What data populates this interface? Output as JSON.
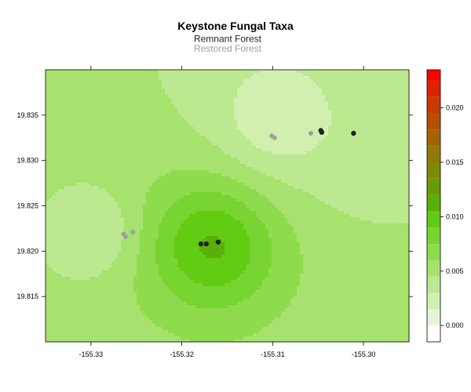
{
  "chart_data": {
    "type": "heatmap",
    "title": "Keystone Fungal Taxa",
    "xlabel": "",
    "ylabel": "",
    "xlim": [
      -155.335,
      -155.295
    ],
    "ylim": [
      19.81,
      19.84
    ],
    "x_ticks": [
      "-155.33",
      "-155.32",
      "-155.31",
      "-155.30"
    ],
    "y_ticks": [
      "19.815",
      "19.820",
      "19.825",
      "19.830",
      "19.835"
    ],
    "legend": {
      "placement": "top",
      "entries": [
        {
          "name": "Remnant Forest",
          "color": "#222222"
        },
        {
          "name": "Restored Forest",
          "color": "#9e9e9e"
        }
      ]
    },
    "colorbar": {
      "min": -0.0015,
      "max": 0.0235,
      "tick_values": [
        0.0,
        0.005,
        0.01,
        0.015,
        0.02
      ],
      "tick_labels": [
        "0.000",
        "0.005",
        "0.010",
        "0.015",
        "0.020"
      ],
      "levels": [
        {
          "lo": -0.0015,
          "hi": 0.0,
          "color": "#ffffff"
        },
        {
          "lo": 0.0,
          "hi": 0.0015,
          "color": "#e6f5d8"
        },
        {
          "lo": 0.0015,
          "hi": 0.003,
          "color": "#d1f0b0"
        },
        {
          "lo": 0.003,
          "hi": 0.0045,
          "color": "#bce98f"
        },
        {
          "lo": 0.0045,
          "hi": 0.006,
          "color": "#a6e26d"
        },
        {
          "lo": 0.006,
          "hi": 0.0075,
          "color": "#8fdb4e"
        },
        {
          "lo": 0.0075,
          "hi": 0.009,
          "color": "#78d431"
        },
        {
          "lo": 0.009,
          "hi": 0.0105,
          "color": "#61cc12"
        },
        {
          "lo": 0.0105,
          "hi": 0.012,
          "color": "#5aaf0a"
        },
        {
          "lo": 0.012,
          "hi": 0.0135,
          "color": "#6a9a05"
        },
        {
          "lo": 0.0135,
          "hi": 0.015,
          "color": "#7d8a04"
        },
        {
          "lo": 0.015,
          "hi": 0.0165,
          "color": "#907a04"
        },
        {
          "lo": 0.0165,
          "hi": 0.018,
          "color": "#a36404"
        },
        {
          "lo": 0.018,
          "hi": 0.0195,
          "color": "#b64f04"
        },
        {
          "lo": 0.0195,
          "hi": 0.021,
          "color": "#c93a03"
        },
        {
          "lo": 0.021,
          "hi": 0.0225,
          "color": "#dc2302"
        },
        {
          "lo": 0.0225,
          "hi": 0.024,
          "color": "#ff0000"
        }
      ]
    },
    "field": {
      "base_value": 0.0045,
      "kernels": [
        {
          "cx": -155.3165,
          "cy": 19.8207,
          "r": 0.0045,
          "amp": 0.004
        },
        {
          "cx": -155.3165,
          "cy": 19.8207,
          "r": 0.008,
          "amp": 0.0015
        },
        {
          "cx": -155.317,
          "cy": 19.822,
          "r": 0.014,
          "amp": 0.001
        },
        {
          "cx": -155.3295,
          "cy": 19.822,
          "r": 0.0036,
          "amp": -0.0025
        },
        {
          "cx": -155.31,
          "cy": 19.835,
          "r": 0.008,
          "amp": -0.002
        },
        {
          "cx": -155.31,
          "cy": 19.834,
          "r": 0.0035,
          "amp": -0.0015
        },
        {
          "cx": -155.3,
          "cy": 19.829,
          "r": 0.006,
          "amp": -0.0005
        }
      ]
    },
    "points": {
      "remnant": [
        {
          "x": -155.3179,
          "y": 19.8208
        },
        {
          "x": -155.3173,
          "y": 19.8208
        },
        {
          "x": -155.316,
          "y": 19.821
        },
        {
          "x": -155.3047,
          "y": 19.8333
        },
        {
          "x": -155.3046,
          "y": 19.8331
        },
        {
          "x": -155.3011,
          "y": 19.833
        }
      ],
      "restored": [
        {
          "x": -155.3264,
          "y": 19.8219
        },
        {
          "x": -155.3262,
          "y": 19.8216
        },
        {
          "x": -155.3254,
          "y": 19.8221
        },
        {
          "x": -155.3101,
          "y": 19.8327
        },
        {
          "x": -155.3098,
          "y": 19.8325
        },
        {
          "x": -155.3058,
          "y": 19.833
        }
      ]
    }
  }
}
